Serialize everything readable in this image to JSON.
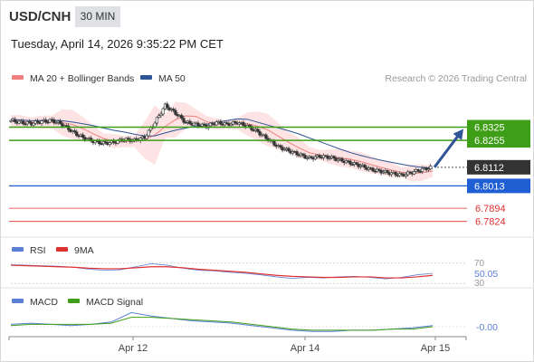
{
  "header": {
    "symbol": "USD/CNH",
    "timeframe": "30 MIN",
    "datetime": "Tuesday, April 14, 2026 9:35:22 PM CET"
  },
  "legend": {
    "ma20": "MA 20 + Bollinger Bands",
    "ma50": "MA 50",
    "ma20_color": "#f08080",
    "ma50_color": "#2f5597"
  },
  "research_credit": "Research © 2026 Trading Central",
  "chart_data": [
    {
      "type": "candlestick",
      "panel": "price",
      "title": "USD/CNH 30 MIN",
      "ylim": [
        6.776,
        6.852
      ],
      "x_labels": [
        "Apr 12",
        "Apr 14",
        "Apr 15"
      ],
      "close_path": [
        6.836,
        6.835,
        6.8345,
        6.8355,
        6.836,
        6.834,
        6.83,
        6.827,
        6.825,
        6.824,
        6.8245,
        6.826,
        6.8255,
        6.827,
        6.835,
        6.844,
        6.84,
        6.835,
        6.834,
        6.833,
        6.835,
        6.834,
        6.835,
        6.833,
        6.83,
        6.826,
        6.822,
        6.82,
        6.818,
        6.816,
        6.817,
        6.8165,
        6.815,
        6.8135,
        6.812,
        6.81,
        6.809,
        6.808,
        6.807,
        6.8085,
        6.81,
        6.8112
      ],
      "series": [
        {
          "name": "MA 20 + Bollinger Bands",
          "color": "#f08080"
        },
        {
          "name": "MA 50",
          "color": "#2f5597"
        }
      ],
      "levels": [
        {
          "value": "6.8325",
          "kind": "resistance",
          "color": "#3f9e17"
        },
        {
          "value": "6.8255",
          "kind": "resistance",
          "color": "#3f9e17"
        },
        {
          "value": "6.8112",
          "kind": "last price",
          "color": "#333333"
        },
        {
          "value": "6.8013",
          "kind": "pivot",
          "color": "#1f5fd3"
        },
        {
          "value": "6.7894",
          "kind": "support",
          "color": "#e03131"
        },
        {
          "value": "6.7824",
          "kind": "support",
          "color": "#e03131"
        }
      ],
      "forecast": {
        "from": 6.8112,
        "to": 6.8325,
        "direction": "up",
        "color": "#2f5597"
      }
    },
    {
      "type": "line",
      "panel": "rsi",
      "legend": [
        "RSI",
        "9MA"
      ],
      "ylim": [
        25,
        75
      ],
      "ticks": [
        "70",
        "30"
      ],
      "current_value": "50.05",
      "series": [
        {
          "name": "RSI",
          "color": "#5b7fd6",
          "values": [
            67,
            66,
            65,
            64,
            62,
            58,
            56,
            57,
            63,
            69,
            66,
            60,
            56,
            55,
            52,
            50,
            47,
            43,
            40,
            42,
            41,
            43,
            44,
            42,
            39,
            42,
            47,
            50
          ]
        },
        {
          "name": "9MA",
          "color": "#e03131",
          "values": [
            66,
            65,
            64,
            63,
            62,
            60,
            59,
            59,
            61,
            63,
            63,
            61,
            58,
            56,
            54,
            52,
            49,
            46,
            44,
            43,
            42,
            42,
            43,
            43,
            41,
            41,
            43,
            46
          ]
        }
      ]
    },
    {
      "type": "line",
      "panel": "macd",
      "legend": [
        "MACD",
        "MACD Signal"
      ],
      "current_value": "-0.00",
      "series": [
        {
          "name": "MACD",
          "color": "#5b7fd6",
          "values": [
            2,
            3,
            2,
            1,
            2,
            4,
            12,
            9,
            7,
            5,
            4,
            3,
            1,
            -1,
            -3,
            -4,
            -4,
            -3,
            -3,
            -2,
            -1,
            1
          ]
        },
        {
          "name": "MACD Signal",
          "color": "#3f9e17",
          "values": [
            1,
            2,
            2,
            2,
            2,
            3,
            8,
            8,
            7,
            6,
            5,
            4,
            2,
            0,
            -2,
            -3,
            -3,
            -3,
            -3,
            -2,
            -2,
            0
          ]
        }
      ]
    }
  ]
}
